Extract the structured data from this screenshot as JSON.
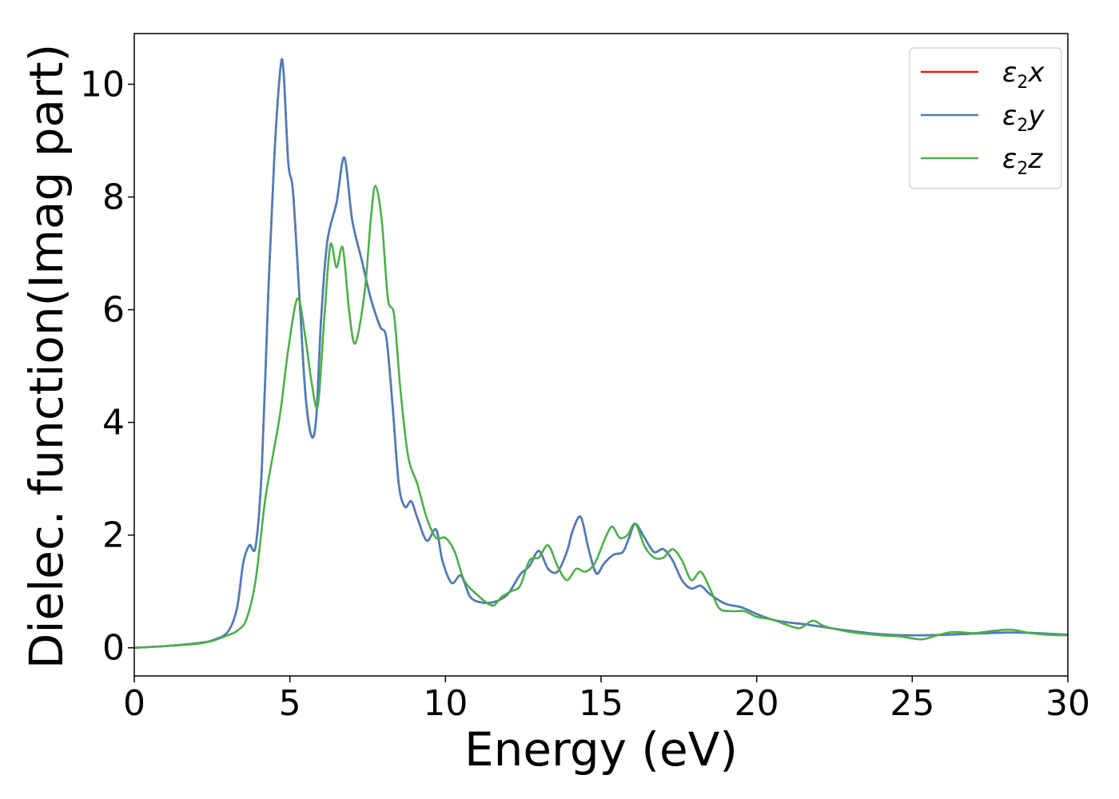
{
  "chart_data": {
    "type": "line",
    "xlabel": "Energy (eV)",
    "ylabel": "Dielec. function(Imag part)",
    "xlim": [
      0,
      30
    ],
    "ylim": [
      -0.5,
      10.9
    ],
    "xticks": [
      0,
      5,
      10,
      15,
      20,
      25,
      30
    ],
    "yticks": [
      0,
      2,
      4,
      6,
      8,
      10
    ],
    "xtick_labels": [
      "0",
      "5",
      "10",
      "15",
      "20",
      "25",
      "30"
    ],
    "ytick_labels": [
      "0",
      "2",
      "4",
      "6",
      "8",
      "10"
    ],
    "grid": false,
    "legend_position": "top-right",
    "series": [
      {
        "name": "ε2x",
        "legend_base": "ε",
        "legend_sub": "2",
        "legend_tail": "x",
        "color": "#e41a1c",
        "x": [
          0,
          1,
          2,
          2.5,
          3.0,
          3.3,
          3.5,
          3.7,
          3.9,
          4.1,
          4.3,
          4.5,
          4.7,
          4.8,
          4.95,
          5.1,
          5.3,
          5.5,
          5.7,
          5.85,
          6.0,
          6.2,
          6.5,
          6.75,
          7.0,
          7.3,
          7.6,
          7.9,
          8.1,
          8.3,
          8.5,
          8.7,
          8.9,
          9.1,
          9.4,
          9.7,
          9.9,
          10.2,
          10.5,
          10.8,
          11.2,
          11.6,
          12.0,
          12.4,
          12.7,
          13.0,
          13.3,
          13.6,
          13.9,
          14.1,
          14.35,
          14.6,
          14.85,
          15.1,
          15.4,
          15.7,
          15.9,
          16.1,
          16.4,
          16.7,
          17.0,
          17.3,
          17.6,
          17.9,
          18.2,
          18.5,
          19.0,
          19.5,
          20.0,
          20.5,
          21.0,
          21.5,
          22.0,
          23.0,
          24.0,
          25.0,
          26.0,
          27.0,
          28.0,
          29.0,
          30.0
        ],
        "y": [
          0.0,
          0.03,
          0.08,
          0.13,
          0.28,
          0.7,
          1.5,
          1.82,
          1.8,
          3.2,
          6.2,
          8.7,
          10.3,
          10.2,
          8.6,
          8.1,
          6.3,
          4.5,
          3.75,
          4.1,
          5.8,
          7.2,
          7.9,
          8.7,
          7.6,
          6.9,
          6.2,
          5.7,
          5.5,
          4.3,
          2.9,
          2.5,
          2.6,
          2.3,
          1.9,
          2.1,
          1.55,
          1.15,
          1.28,
          0.9,
          0.8,
          0.82,
          0.95,
          1.3,
          1.45,
          1.72,
          1.4,
          1.35,
          1.7,
          2.1,
          2.32,
          1.75,
          1.32,
          1.5,
          1.65,
          1.7,
          1.95,
          2.2,
          1.95,
          1.7,
          1.75,
          1.55,
          1.2,
          1.05,
          1.1,
          0.95,
          0.78,
          0.72,
          0.6,
          0.5,
          0.45,
          0.42,
          0.38,
          0.3,
          0.24,
          0.22,
          0.23,
          0.25,
          0.27,
          0.26,
          0.23
        ]
      },
      {
        "name": "ε2y",
        "legend_base": "ε",
        "legend_sub": "2",
        "legend_tail": "y",
        "color": "#4a7ebb",
        "x": [
          0,
          1,
          2,
          2.5,
          3.0,
          3.3,
          3.5,
          3.7,
          3.9,
          4.1,
          4.3,
          4.5,
          4.7,
          4.8,
          4.95,
          5.1,
          5.3,
          5.5,
          5.7,
          5.85,
          6.0,
          6.2,
          6.5,
          6.75,
          7.0,
          7.3,
          7.6,
          7.9,
          8.1,
          8.3,
          8.5,
          8.7,
          8.9,
          9.1,
          9.4,
          9.7,
          9.9,
          10.2,
          10.5,
          10.8,
          11.2,
          11.6,
          12.0,
          12.4,
          12.7,
          13.0,
          13.3,
          13.6,
          13.9,
          14.1,
          14.35,
          14.6,
          14.85,
          15.1,
          15.4,
          15.7,
          15.9,
          16.1,
          16.4,
          16.7,
          17.0,
          17.3,
          17.6,
          17.9,
          18.2,
          18.5,
          19.0,
          19.5,
          20.0,
          20.5,
          21.0,
          21.5,
          22.0,
          23.0,
          24.0,
          25.0,
          26.0,
          27.0,
          28.0,
          29.0,
          30.0
        ],
        "y": [
          0.0,
          0.03,
          0.08,
          0.13,
          0.28,
          0.7,
          1.5,
          1.82,
          1.8,
          3.2,
          6.2,
          8.7,
          10.3,
          10.2,
          8.6,
          8.1,
          6.3,
          4.5,
          3.75,
          4.1,
          5.8,
          7.2,
          7.9,
          8.7,
          7.6,
          6.9,
          6.2,
          5.7,
          5.5,
          4.3,
          2.9,
          2.5,
          2.6,
          2.3,
          1.9,
          2.1,
          1.55,
          1.15,
          1.28,
          0.9,
          0.8,
          0.82,
          0.95,
          1.3,
          1.45,
          1.72,
          1.4,
          1.35,
          1.7,
          2.1,
          2.32,
          1.75,
          1.32,
          1.5,
          1.65,
          1.7,
          1.95,
          2.2,
          1.95,
          1.7,
          1.75,
          1.55,
          1.2,
          1.05,
          1.1,
          0.95,
          0.78,
          0.72,
          0.6,
          0.5,
          0.45,
          0.42,
          0.38,
          0.3,
          0.24,
          0.22,
          0.23,
          0.25,
          0.27,
          0.26,
          0.23
        ]
      },
      {
        "name": "ε2z",
        "legend_base": "ε",
        "legend_sub": "2",
        "legend_tail": "z",
        "color": "#4daf4a",
        "x": [
          0,
          1,
          2,
          2.5,
          3.0,
          3.3,
          3.6,
          3.9,
          4.2,
          4.45,
          4.7,
          4.95,
          5.25,
          5.5,
          5.7,
          5.9,
          6.1,
          6.3,
          6.5,
          6.7,
          6.9,
          7.1,
          7.4,
          7.6,
          7.75,
          7.95,
          8.15,
          8.35,
          8.55,
          8.8,
          9.1,
          9.4,
          9.7,
          10.0,
          10.3,
          10.6,
          11.0,
          11.5,
          11.8,
          12.1,
          12.4,
          12.7,
          13.0,
          13.3,
          13.6,
          13.9,
          14.2,
          14.5,
          14.8,
          15.1,
          15.35,
          15.6,
          15.85,
          16.1,
          16.4,
          16.7,
          17.0,
          17.3,
          17.6,
          17.9,
          18.2,
          18.5,
          18.8,
          19.2,
          19.6,
          20.0,
          20.5,
          21.0,
          21.4,
          21.8,
          22.2,
          23.0,
          24.0,
          24.6,
          25.3,
          25.8,
          26.3,
          27.0,
          27.6,
          28.2,
          28.8,
          29.4,
          30.0
        ],
        "y": [
          0.0,
          0.03,
          0.07,
          0.12,
          0.22,
          0.3,
          0.5,
          1.2,
          2.6,
          3.4,
          4.2,
          5.3,
          6.2,
          5.5,
          4.7,
          4.3,
          5.8,
          7.15,
          6.75,
          7.1,
          6.0,
          5.4,
          6.3,
          7.6,
          8.2,
          7.6,
          6.2,
          5.9,
          4.6,
          3.4,
          2.9,
          2.3,
          1.95,
          1.95,
          1.7,
          1.2,
          0.95,
          0.75,
          0.9,
          1.0,
          1.1,
          1.55,
          1.6,
          1.82,
          1.45,
          1.2,
          1.4,
          1.35,
          1.5,
          1.9,
          2.15,
          1.95,
          2.0,
          2.2,
          1.8,
          1.6,
          1.6,
          1.75,
          1.55,
          1.2,
          1.35,
          1.05,
          0.7,
          0.65,
          0.65,
          0.55,
          0.5,
          0.4,
          0.35,
          0.48,
          0.38,
          0.28,
          0.22,
          0.2,
          0.15,
          0.22,
          0.28,
          0.26,
          0.3,
          0.32,
          0.26,
          0.23,
          0.22
        ]
      }
    ]
  }
}
